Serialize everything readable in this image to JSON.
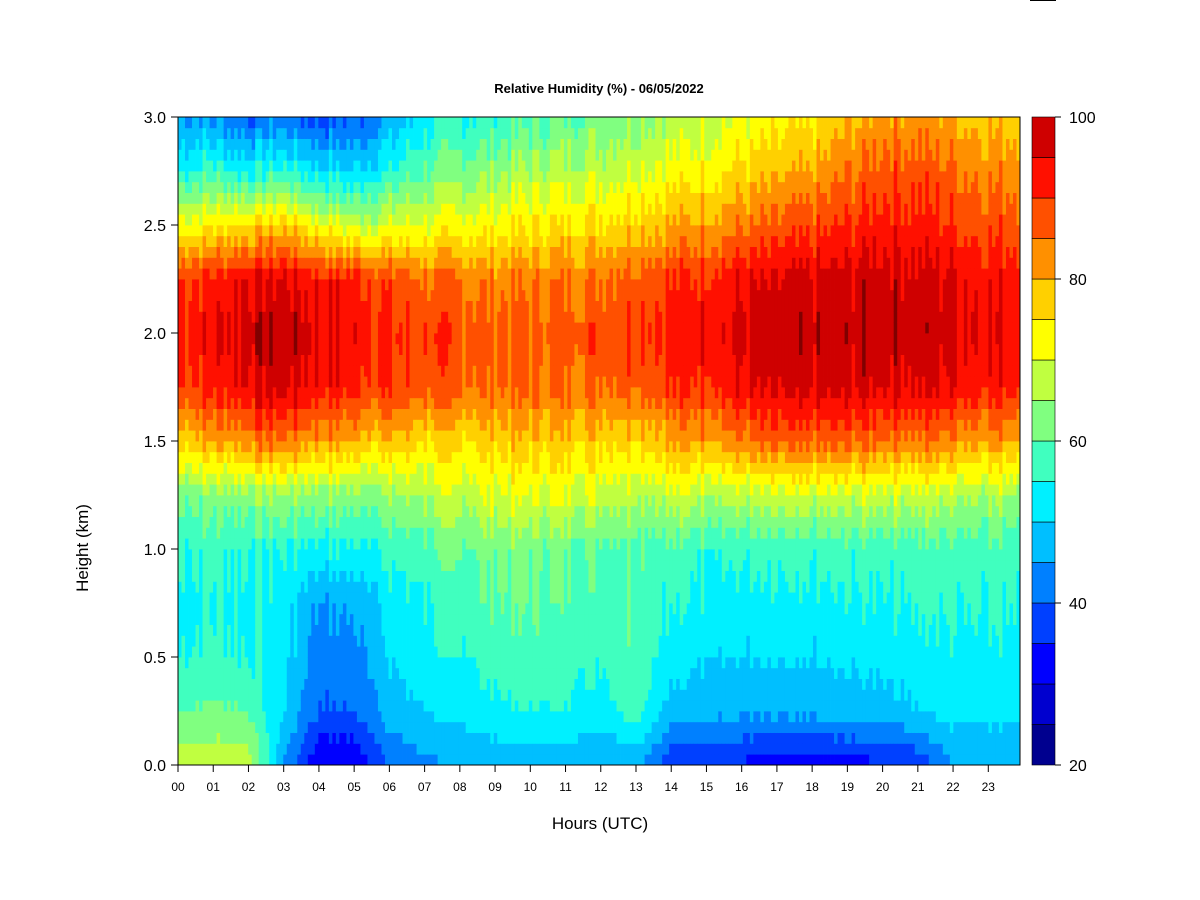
{
  "chart_data": {
    "type": "heatmap",
    "title": "Relative Humidity (%) - 06/05/2022",
    "xlabel": "Hours (UTC)",
    "ylabel": "Height (km)",
    "x_ticks": [
      "00",
      "01",
      "02",
      "03",
      "04",
      "05",
      "06",
      "07",
      "08",
      "09",
      "10",
      "11",
      "12",
      "13",
      "14",
      "15",
      "16",
      "17",
      "18",
      "19",
      "20",
      "21",
      "22",
      "23"
    ],
    "y_ticks": [
      "0.0",
      "0.5",
      "1.0",
      "1.5",
      "2.0",
      "2.5",
      "3.0"
    ],
    "xlim": [
      0,
      23.9
    ],
    "ylim": [
      0,
      3.0
    ],
    "colorbar": {
      "levels": [
        20,
        25,
        30,
        35,
        40,
        45,
        50,
        55,
        60,
        65,
        70,
        75,
        80,
        85,
        90,
        95,
        100
      ],
      "colors": [
        "#00008f",
        "#0000cf",
        "#0000ff",
        "#0040ff",
        "#0080ff",
        "#00bfff",
        "#00f0ff",
        "#40ffbf",
        "#80ff80",
        "#c0ff40",
        "#ffff00",
        "#ffd000",
        "#ff9000",
        "#ff5000",
        "#ff1000",
        "#cf0000",
        "#800000"
      ],
      "tick_labels": [
        "20",
        "40",
        "60",
        "80",
        "100"
      ]
    },
    "hours": [
      0,
      1,
      2,
      3,
      4,
      5,
      6,
      7,
      8,
      9,
      10,
      11,
      12,
      13,
      14,
      15,
      16,
      17,
      18,
      19,
      20,
      21,
      22,
      23
    ],
    "heights_km": [
      0.0,
      0.25,
      0.5,
      0.75,
      1.0,
      1.25,
      1.5,
      1.75,
      2.0,
      2.25,
      2.5,
      2.75,
      3.0
    ],
    "rh_percent": [
      [
        68,
        60,
        55,
        54,
        56,
        62,
        78,
        90,
        92,
        90,
        72,
        55,
        45
      ],
      [
        69,
        61,
        56,
        55,
        57,
        63,
        80,
        92,
        94,
        92,
        74,
        57,
        44
      ],
      [
        68,
        60,
        55,
        54,
        56,
        64,
        84,
        96,
        98,
        95,
        76,
        54,
        40
      ],
      [
        45,
        50,
        52,
        53,
        55,
        65,
        85,
        97,
        99,
        96,
        78,
        56,
        42
      ],
      [
        30,
        40,
        42,
        45,
        54,
        64,
        82,
        94,
        96,
        93,
        72,
        52,
        38
      ],
      [
        30,
        40,
        43,
        46,
        54,
        63,
        80,
        92,
        94,
        92,
        68,
        50,
        40
      ],
      [
        40,
        48,
        50,
        52,
        56,
        64,
        78,
        90,
        91,
        88,
        70,
        55,
        45
      ],
      [
        44,
        50,
        53,
        55,
        58,
        66,
        76,
        88,
        89,
        86,
        70,
        60,
        52
      ],
      [
        45,
        52,
        55,
        58,
        60,
        68,
        76,
        86,
        88,
        85,
        72,
        62,
        55
      ],
      [
        46,
        54,
        57,
        60,
        62,
        70,
        78,
        86,
        87,
        84,
        73,
        64,
        56
      ],
      [
        47,
        55,
        58,
        60,
        62,
        70,
        78,
        86,
        87,
        84,
        74,
        66,
        58
      ],
      [
        47,
        55,
        57,
        59,
        61,
        70,
        78,
        86,
        88,
        85,
        75,
        67,
        60
      ],
      [
        45,
        53,
        56,
        58,
        60,
        69,
        78,
        87,
        89,
        86,
        76,
        68,
        62
      ],
      [
        46,
        58,
        60,
        60,
        60,
        68,
        78,
        88,
        90,
        88,
        78,
        70,
        64
      ],
      [
        36,
        48,
        52,
        55,
        58,
        68,
        80,
        90,
        92,
        90,
        80,
        72,
        66
      ],
      [
        36,
        47,
        51,
        54,
        57,
        68,
        82,
        92,
        94,
        92,
        82,
        74,
        68
      ],
      [
        34,
        46,
        50,
        53,
        56,
        67,
        84,
        94,
        96,
        94,
        84,
        76,
        70
      ],
      [
        33,
        46,
        50,
        53,
        56,
        67,
        85,
        95,
        97,
        95,
        86,
        78,
        72
      ],
      [
        33,
        46,
        50,
        53,
        56,
        68,
        86,
        96,
        98,
        96,
        88,
        80,
        74
      ],
      [
        33,
        47,
        51,
        54,
        57,
        68,
        86,
        96,
        98,
        97,
        90,
        84,
        78
      ],
      [
        34,
        48,
        52,
        55,
        58,
        69,
        86,
        97,
        99,
        98,
        93,
        88,
        82
      ],
      [
        36,
        50,
        53,
        56,
        58,
        68,
        85,
        96,
        98,
        97,
        92,
        88,
        82
      ],
      [
        45,
        52,
        54,
        56,
        58,
        67,
        84,
        95,
        97,
        96,
        90,
        86,
        80
      ],
      [
        45,
        52,
        54,
        56,
        58,
        66,
        82,
        93,
        95,
        94,
        88,
        84,
        78
      ]
    ]
  }
}
